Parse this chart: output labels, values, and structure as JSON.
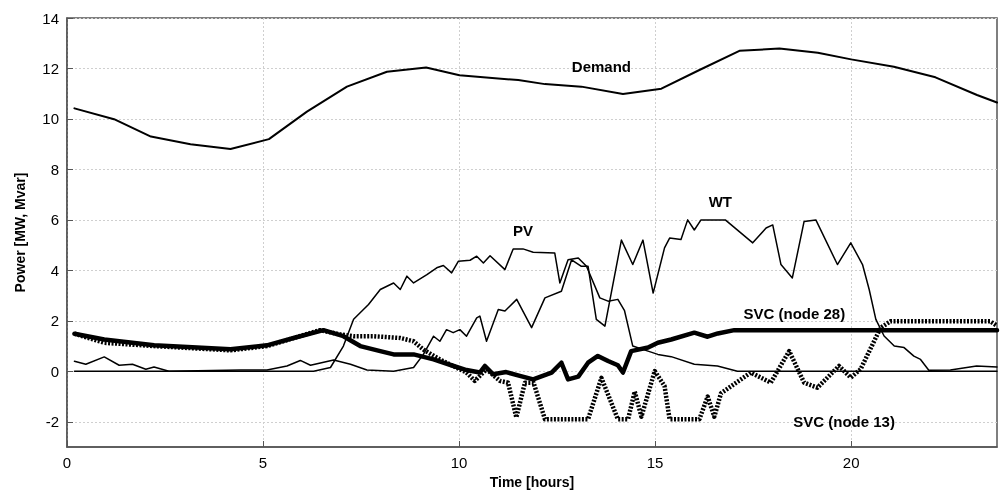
{
  "chart_data": {
    "type": "line",
    "xlabel": "Time [hours]",
    "ylabel": "Power [MW, Mvar]",
    "xlim": [
      0,
      23.72
    ],
    "xticks": [
      0,
      5,
      10,
      15,
      20
    ],
    "ylim": [
      -3,
      14
    ],
    "yticks": [
      -2,
      0,
      2,
      4,
      6,
      8,
      10,
      12,
      14
    ],
    "grid": true,
    "legend": false,
    "marker": "none",
    "series": [
      {
        "name": "Demand",
        "color": "#000000",
        "line_style": "solid",
        "x": [
          0.19,
          1.2,
          2.14,
          3.15,
          4.17,
          5.15,
          6.12,
          7.14,
          8.16,
          9.16,
          10.01,
          11.51,
          12.19,
          13.12,
          14.18,
          15.16,
          16.13,
          17.15,
          18.17,
          19.15,
          20.0,
          21.09,
          22.15,
          23.21,
          23.72
        ],
        "values": [
          10.42,
          9.99,
          9.3,
          9.0,
          8.81,
          9.2,
          10.29,
          11.28,
          11.87,
          12.04,
          11.73,
          11.54,
          11.38,
          11.28,
          10.99,
          11.2,
          11.94,
          12.7,
          12.79,
          12.62,
          12.36,
          12.07,
          11.65,
          10.95,
          10.65
        ]
      },
      {
        "name": "PV",
        "color": "#000000",
        "line_style": "solid",
        "x": [
          0.19,
          6.29,
          6.72,
          7.05,
          7.31,
          7.69,
          7.99,
          8.33,
          8.5,
          8.67,
          8.84,
          9.18,
          9.43,
          9.6,
          9.81,
          9.98,
          10.28,
          10.45,
          10.62,
          10.79,
          11.17,
          11.38,
          11.63,
          11.89,
          12.44,
          12.57,
          12.78,
          13.04,
          13.25,
          13.59,
          13.8,
          14.05,
          14.22,
          14.43,
          14.82,
          15.07,
          15.41,
          16.0,
          16.59,
          17.1,
          23.72
        ],
        "values": [
          0,
          0,
          0.15,
          1.0,
          2.06,
          2.65,
          3.24,
          3.5,
          3.24,
          3.77,
          3.5,
          3.83,
          4.1,
          4.19,
          3.9,
          4.36,
          4.4,
          4.56,
          4.29,
          4.58,
          4.03,
          4.85,
          4.85,
          4.72,
          4.69,
          3.5,
          4.42,
          4.49,
          4.16,
          2.91,
          2.78,
          2.85,
          2.4,
          1.0,
          0.8,
          0.67,
          0.58,
          0.28,
          0.21,
          0,
          0
        ]
      },
      {
        "name": "WT",
        "color": "#000000",
        "line_style": "solid",
        "x": [
          0.19,
          0.48,
          0.95,
          1.33,
          1.67,
          2.01,
          2.22,
          2.6,
          4.43,
          5.1,
          5.61,
          5.95,
          6.21,
          6.8,
          7.23,
          7.65,
          8.33,
          8.84,
          9.09,
          9.35,
          9.51,
          9.68,
          9.85,
          10.02,
          10.19,
          10.45,
          10.53,
          10.7,
          11.0,
          11.17,
          11.47,
          11.85,
          12.19,
          12.61,
          12.87,
          13.12,
          13.29,
          13.5,
          13.72,
          14.14,
          14.43,
          14.69,
          14.95,
          15.24,
          15.37,
          15.66,
          15.83,
          16.0,
          16.17,
          16.79,
          17.49,
          17.83,
          18.0,
          18.21,
          18.5,
          18.8,
          19.1,
          19.65,
          19.99,
          20.29,
          20.46,
          20.63,
          20.84,
          21.1,
          21.35,
          21.6,
          21.77,
          21.98,
          22.53,
          23.2,
          23.72
        ],
        "values": [
          0.4,
          0.28,
          0.57,
          0.24,
          0.28,
          0.08,
          0.17,
          0,
          0.05,
          0.05,
          0.21,
          0.43,
          0.24,
          0.45,
          0.28,
          0.05,
          0,
          0.15,
          0.67,
          1.39,
          1.19,
          1.65,
          1.53,
          1.65,
          1.39,
          2.12,
          2.19,
          1.19,
          2.45,
          2.39,
          2.85,
          1.73,
          2.91,
          3.17,
          4.42,
          4.16,
          4.16,
          2.06,
          1.79,
          5.2,
          4.23,
          5.2,
          3.1,
          4.89,
          5.28,
          5.22,
          6.0,
          5.6,
          6.0,
          6.0,
          5.09,
          5.68,
          5.8,
          4.23,
          3.7,
          5.94,
          6.0,
          4.23,
          5.09,
          4.23,
          3.24,
          2.06,
          1.4,
          1.0,
          0.94,
          0.6,
          0.47,
          0.04,
          0.05,
          0.21,
          0.17
        ]
      },
      {
        "name": "SVC (node 28)",
        "color": "#000000",
        "line_style": "solid",
        "x": [
          0.19,
          0.95,
          2.22,
          4.17,
          5.1,
          5.78,
          6.54,
          7.05,
          7.48,
          7.99,
          8.33,
          8.84,
          9.35,
          9.86,
          10.19,
          10.53,
          10.66,
          10.87,
          11.2,
          11.55,
          11.89,
          12.36,
          12.61,
          12.78,
          13.04,
          13.29,
          13.54,
          13.8,
          14.05,
          14.18,
          14.39,
          14.82,
          15.07,
          15.41,
          16.0,
          16.34,
          16.6,
          17.02,
          23.72
        ],
        "values": [
          1.49,
          1.26,
          1.03,
          0.87,
          1.03,
          1.32,
          1.63,
          1.39,
          1.0,
          0.8,
          0.67,
          0.67,
          0.47,
          0.21,
          0.05,
          -0.05,
          0.21,
          -0.12,
          -0.03,
          -0.18,
          -0.32,
          -0.05,
          0.34,
          -0.32,
          -0.21,
          0.34,
          0.61,
          0.41,
          0.24,
          -0.05,
          0.8,
          0.94,
          1.13,
          1.26,
          1.53,
          1.37,
          1.5,
          1.63,
          1.63
        ]
      },
      {
        "name": "SVC (node 13)",
        "color": "#000000",
        "line_style": "dotted",
        "x": [
          0.19,
          0.95,
          2.22,
          4.17,
          5.1,
          6.45,
          6.97,
          7.31,
          7.82,
          8.5,
          8.84,
          9.09,
          9.51,
          9.85,
          10.19,
          10.4,
          10.7,
          11.04,
          11.25,
          11.46,
          11.68,
          11.9,
          12.19,
          13.29,
          13.63,
          14.05,
          14.31,
          14.48,
          14.65,
          14.99,
          15.24,
          15.37,
          16.13,
          16.34,
          16.51,
          16.68,
          17.44,
          17.95,
          18.42,
          18.8,
          19.14,
          19.69,
          19.99,
          20.24,
          20.75,
          21.0,
          23.55,
          23.72
        ],
        "values": [
          1.49,
          1.13,
          1.0,
          0.83,
          1.0,
          1.63,
          1.46,
          1.39,
          1.39,
          1.32,
          1.19,
          0.86,
          0.47,
          0.21,
          -0.05,
          -0.38,
          0.08,
          -0.38,
          -0.45,
          -1.83,
          -0.45,
          -0.45,
          -1.9,
          -1.9,
          -0.26,
          -1.9,
          -1.9,
          -0.8,
          -1.8,
          0.01,
          -0.58,
          -1.9,
          -1.9,
          -1.0,
          -1.8,
          -0.87,
          -0.05,
          -0.45,
          0.8,
          -0.45,
          -0.65,
          0.21,
          -0.25,
          0.08,
          1.72,
          1.98,
          1.98,
          1.8
        ]
      }
    ]
  }
}
